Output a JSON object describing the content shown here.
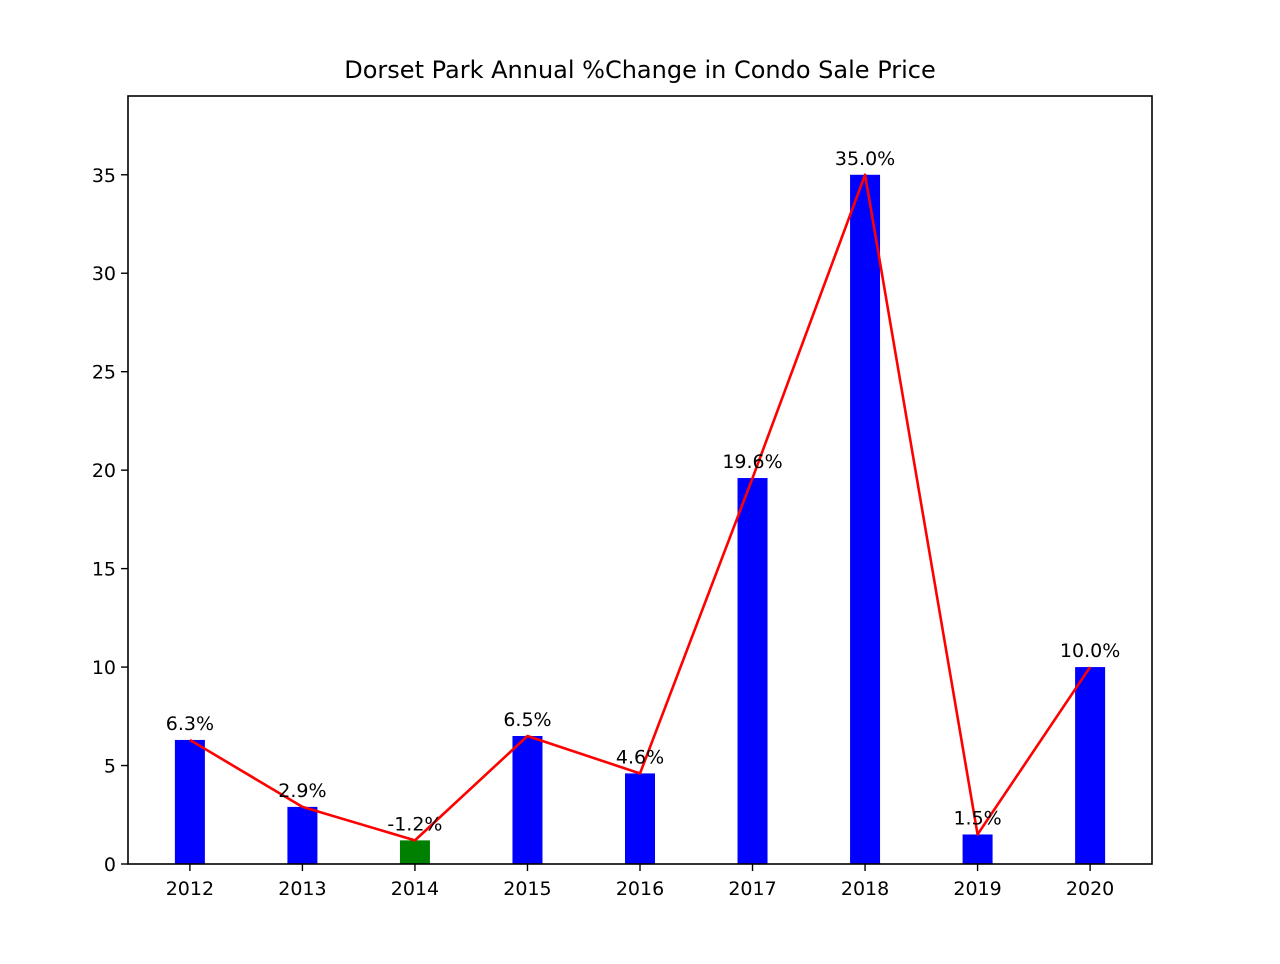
{
  "chart_data": {
    "type": "bar",
    "title": "Dorset Park Annual %Change in Condo Sale Price",
    "xlabel": "",
    "ylabel": "",
    "categories": [
      "2012",
      "2013",
      "2014",
      "2015",
      "2016",
      "2017",
      "2018",
      "2019",
      "2020"
    ],
    "values": [
      6.3,
      2.9,
      -1.2,
      6.5,
      4.6,
      19.6,
      35.0,
      1.5,
      10.0
    ],
    "bar_heights": [
      6.3,
      2.9,
      1.2,
      6.5,
      4.6,
      19.6,
      35.0,
      1.5,
      10.0
    ],
    "data_labels": [
      "6.3%",
      "2.9%",
      "-1.2%",
      "6.5%",
      "4.6%",
      "19.6%",
      "35.0%",
      "1.5%",
      "10.0%"
    ],
    "bar_colors": [
      "#0000ff",
      "#0000ff",
      "#008000",
      "#0000ff",
      "#0000ff",
      "#0000ff",
      "#0000ff",
      "#0000ff",
      "#0000ff"
    ],
    "line_series": {
      "values": [
        6.3,
        2.9,
        1.2,
        6.5,
        4.6,
        19.6,
        35.0,
        1.5,
        10.0
      ],
      "color": "#ff0000"
    },
    "ylim": [
      0,
      39
    ],
    "yticks": [
      0,
      5,
      10,
      15,
      20,
      25,
      30,
      35
    ],
    "grid": false,
    "legend": "none"
  }
}
